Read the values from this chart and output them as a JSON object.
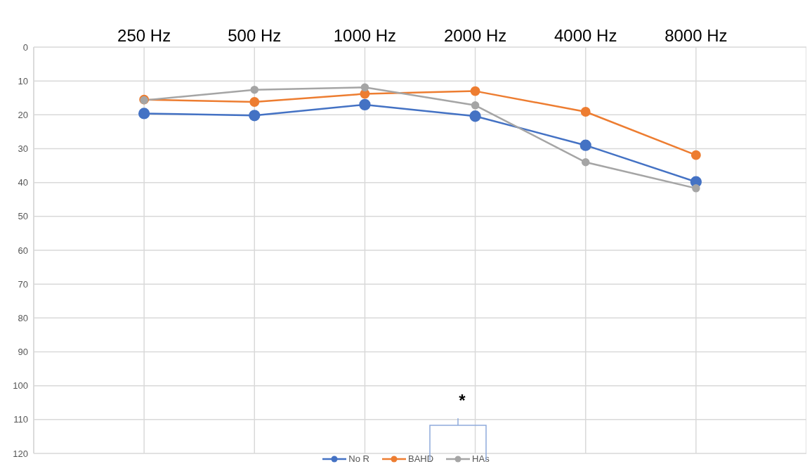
{
  "chart_data": {
    "type": "line",
    "categories": [
      "250 Hz",
      "500 Hz",
      "1000 Hz",
      "2000 Hz",
      "4000 Hz",
      "8000 Hz"
    ],
    "series": [
      {
        "name": "No R",
        "color": "#4472c4",
        "values": [
          19.6,
          20.2,
          17,
          20.4,
          29,
          39.8
        ]
      },
      {
        "name": "BAHD",
        "color": "#ed7d31",
        "values": [
          15.5,
          16.2,
          13.8,
          13,
          19.1,
          31.9
        ]
      },
      {
        "name": "HAs",
        "color": "#a5a5a5",
        "values": [
          15.7,
          12.6,
          11.9,
          17.2,
          34,
          41.7
        ]
      }
    ],
    "ylim": [
      120,
      0
    ],
    "yticks": [
      0,
      10,
      20,
      30,
      40,
      50,
      60,
      70,
      80,
      90,
      100,
      110,
      120
    ],
    "grid": true,
    "legend": "bottom",
    "marker": "circle",
    "line_style": "solid",
    "annotations": [
      "*"
    ]
  }
}
